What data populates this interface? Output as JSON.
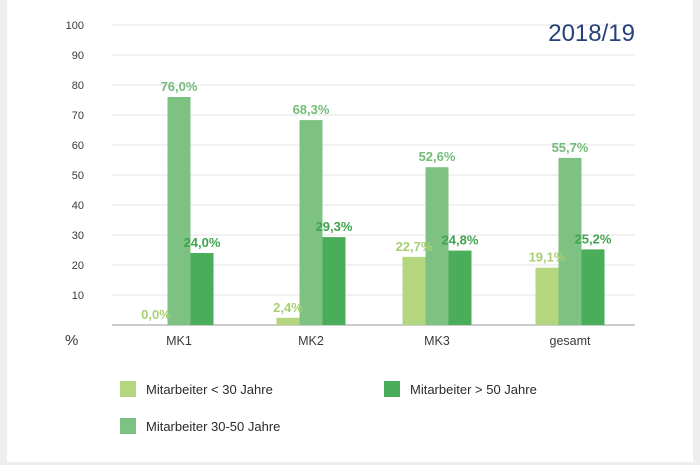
{
  "chart_data": {
    "type": "bar",
    "title": "2018/19",
    "ylabel": "%",
    "ylim": [
      0,
      100
    ],
    "yticks": [
      10,
      20,
      30,
      40,
      50,
      60,
      70,
      80,
      90,
      100
    ],
    "grid": true,
    "categories": [
      "MK1",
      "MK2",
      "MK3",
      "gesamt"
    ],
    "series": [
      {
        "name": "Mitarbeiter < 30 Jahre",
        "color": "#b3d67f",
        "label_color": "#a8cf72",
        "values": [
          0.0,
          2.4,
          22.7,
          19.1
        ],
        "labels": [
          "0,0%",
          "2,4%",
          "22,7%",
          "19,1%"
        ]
      },
      {
        "name": "Mitarbeiter 30-50 Jahre",
        "color": "#7dc283",
        "label_color": "#72bd78",
        "values": [
          76.0,
          68.3,
          52.6,
          55.7
        ],
        "labels": [
          "76,0%",
          "68,3%",
          "52,6%",
          "55,7%"
        ]
      },
      {
        "name": "Mitarbeiter > 50 Jahre",
        "color": "#4aad59",
        "label_color": "#3fa34e",
        "values": [
          24.0,
          29.3,
          24.8,
          25.2
        ],
        "labels": [
          "24,0%",
          "29,3%",
          "24,8%",
          "25,2%"
        ]
      }
    ],
    "legend_position": "bottom"
  }
}
